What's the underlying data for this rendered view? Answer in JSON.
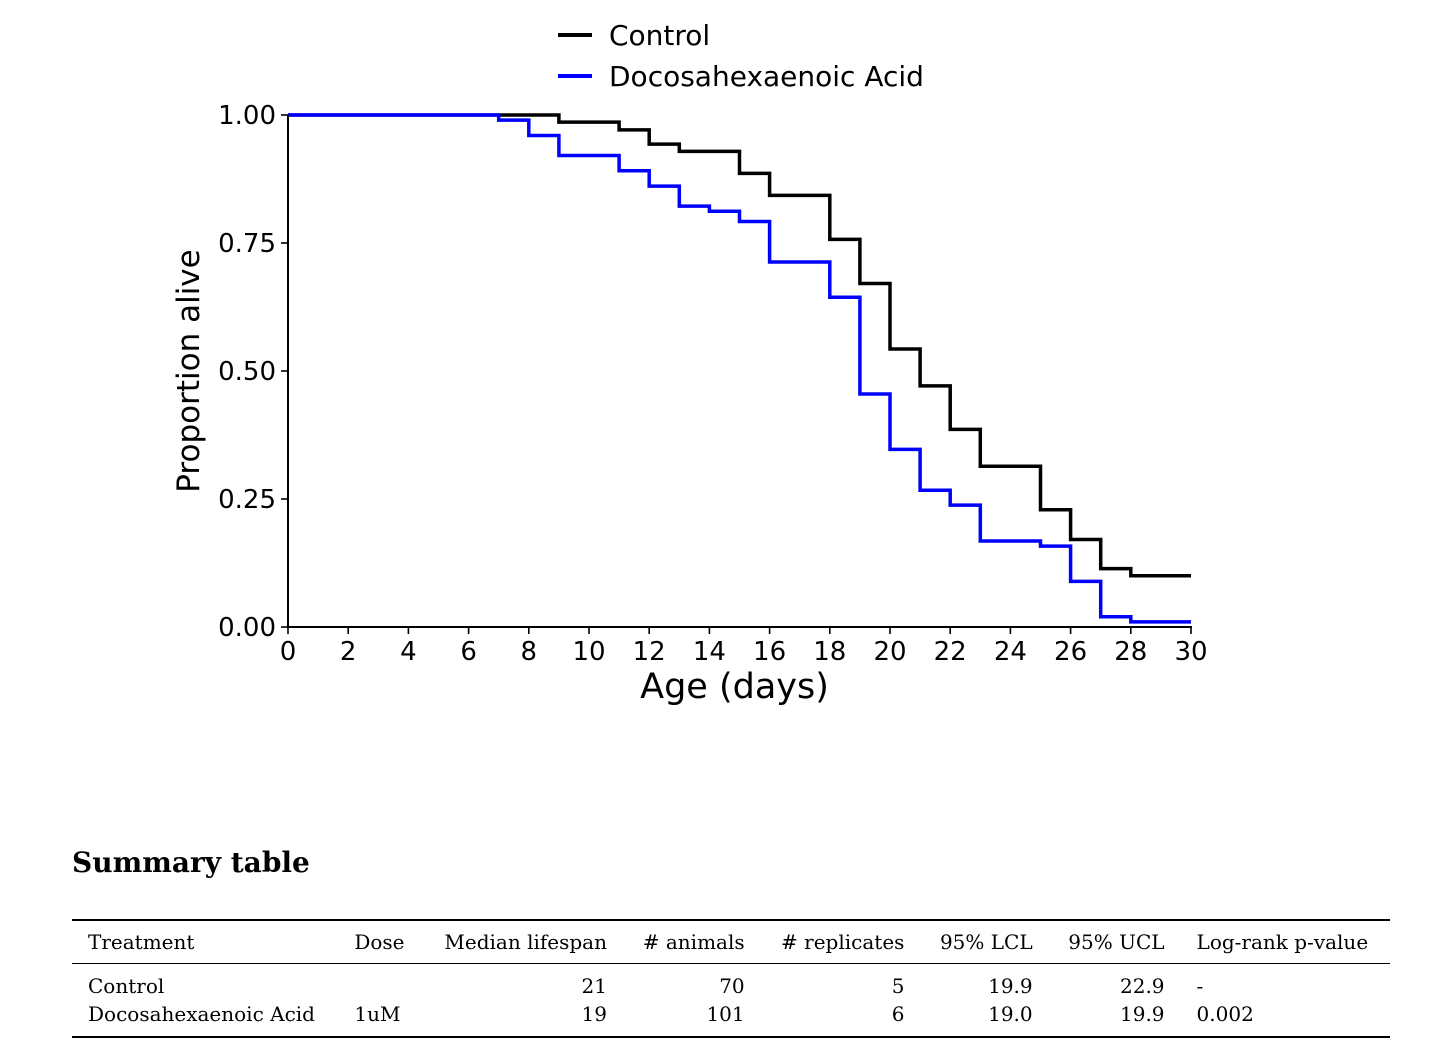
{
  "chart_data": {
    "type": "line",
    "subtype": "kaplan-meier step",
    "title": "",
    "xlabel": "Age (days)",
    "ylabel": "Proportion alive",
    "xlim": [
      0,
      30
    ],
    "ylim": [
      0,
      1
    ],
    "x_ticks": [
      0,
      2,
      4,
      6,
      8,
      10,
      12,
      14,
      16,
      18,
      20,
      22,
      24,
      26,
      28,
      30
    ],
    "y_ticks": [
      "0.00",
      "0.25",
      "0.50",
      "0.75",
      "1.00"
    ],
    "grid": false,
    "legend": "top-center",
    "series": [
      {
        "name": "Control",
        "color": "#000000",
        "x": [
          0,
          9,
          11,
          12,
          13,
          15,
          16,
          18,
          19,
          20,
          21,
          22,
          23,
          25,
          26,
          27,
          28,
          30
        ],
        "y": [
          1.0,
          0.986,
          0.971,
          0.943,
          0.929,
          0.886,
          0.843,
          0.757,
          0.671,
          0.543,
          0.471,
          0.386,
          0.314,
          0.229,
          0.171,
          0.114,
          0.1,
          0.1
        ]
      },
      {
        "name": "Docosahexaenoic Acid",
        "color": "#0000ff",
        "x": [
          0,
          7,
          8,
          9,
          11,
          12,
          13,
          14,
          15,
          16,
          18,
          19,
          20,
          21,
          22,
          23,
          25,
          26,
          27,
          28,
          30
        ],
        "y": [
          1.0,
          0.99,
          0.96,
          0.921,
          0.891,
          0.861,
          0.822,
          0.812,
          0.792,
          0.713,
          0.644,
          0.455,
          0.347,
          0.267,
          0.238,
          0.168,
          0.158,
          0.089,
          0.02,
          0.01,
          0.01
        ]
      }
    ]
  },
  "summary": {
    "title": "Summary table",
    "columns": [
      "Treatment",
      "Dose",
      "Median lifespan",
      "# animals",
      "# replicates",
      "95% LCL",
      "95% UCL",
      "Log-rank p-value"
    ],
    "rows": [
      [
        "Control",
        "",
        "21",
        "70",
        "5",
        "19.9",
        "22.9",
        "-"
      ],
      [
        "Docosahexaenoic Acid",
        "1uM",
        "19",
        "101",
        "6",
        "19.0",
        "19.9",
        "0.002"
      ]
    ]
  }
}
